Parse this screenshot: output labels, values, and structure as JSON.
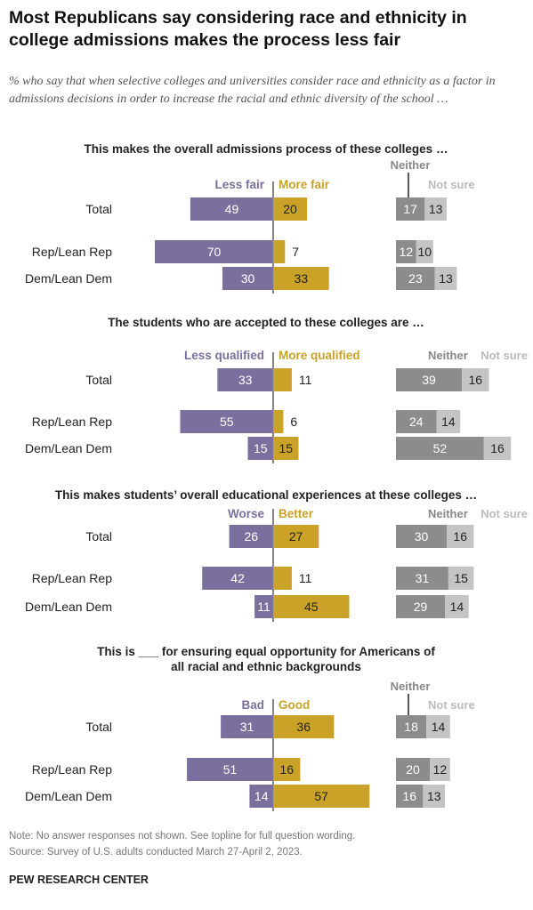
{
  "title": "Most Republicans say considering race and ethnicity in college admissions makes the process less fair",
  "subtitle": "% who say that when selective colleges and universities consider race and ethnicity as a factor in admissions decisions in order to increase the racial and ethnic diversity of the school …",
  "note": "Note: No answer responses not shown. See topline for full question wording.",
  "source": "Source: Survey of U.S. adults conducted March 27-April 2, 2023.",
  "source_org": "PEW RESEARCH CENTER",
  "colors": {
    "negative": "#7b6f9e",
    "positive": "#c9a227",
    "neither": "#8c8c8c",
    "not_sure": "#c4c4c4",
    "negative_label": "#7b6f9e",
    "positive_label": "#c9a227",
    "neither_label": "#888888",
    "not_sure_label": "#bbbbbb"
  },
  "chart_data": [
    {
      "type": "bar",
      "title": "This makes the overall admissions process of these colleges …",
      "categories": [
        "Total",
        "Rep/Lean Rep",
        "Dem/Lean Dem"
      ],
      "series": [
        {
          "name": "Less fair",
          "values": [
            49,
            70,
            30
          ]
        },
        {
          "name": "More fair",
          "values": [
            20,
            7,
            33
          ]
        },
        {
          "name": "Neither",
          "values": [
            17,
            12,
            23
          ]
        },
        {
          "name": "Not sure",
          "values": [
            13,
            10,
            13
          ]
        }
      ]
    },
    {
      "type": "bar",
      "title": "The students who are accepted to these colleges are …",
      "categories": [
        "Total",
        "Rep/Lean Rep",
        "Dem/Lean Dem"
      ],
      "series": [
        {
          "name": "Less qualified",
          "values": [
            33,
            55,
            15
          ]
        },
        {
          "name": "More qualified",
          "values": [
            11,
            6,
            15
          ]
        },
        {
          "name": "Neither",
          "values": [
            39,
            24,
            52
          ]
        },
        {
          "name": "Not sure",
          "values": [
            16,
            14,
            16
          ]
        }
      ]
    },
    {
      "type": "bar",
      "title": "This makes students’ overall educational experiences at these colleges …",
      "categories": [
        "Total",
        "Rep/Lean Rep",
        "Dem/Lean Dem"
      ],
      "series": [
        {
          "name": "Worse",
          "values": [
            26,
            42,
            11
          ]
        },
        {
          "name": "Better",
          "values": [
            27,
            11,
            45
          ]
        },
        {
          "name": "Neither",
          "values": [
            30,
            31,
            29
          ]
        },
        {
          "name": "Not sure",
          "values": [
            16,
            15,
            14
          ]
        }
      ]
    },
    {
      "type": "bar",
      "title": "This is ___ for ensuring equal opportunity for Americans of all racial and ethnic backgrounds",
      "categories": [
        "Total",
        "Rep/Lean Rep",
        "Dem/Lean Dem"
      ],
      "series": [
        {
          "name": "Bad",
          "values": [
            31,
            51,
            14
          ]
        },
        {
          "name": "Good",
          "values": [
            36,
            16,
            57
          ]
        },
        {
          "name": "Neither",
          "values": [
            18,
            20,
            16
          ]
        },
        {
          "name": "Not sure",
          "values": [
            14,
            12,
            13
          ]
        }
      ]
    }
  ]
}
